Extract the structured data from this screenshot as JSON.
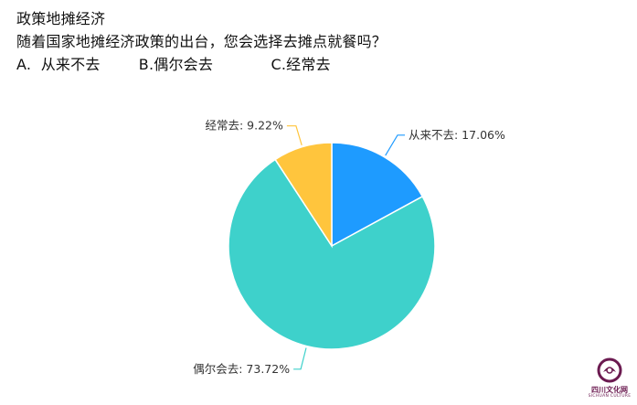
{
  "survey": {
    "title": "政策地摊经济",
    "question": "随着国家地摊经济政策的出台，您会选择去摊点就餐吗？",
    "options_line": "A.  从来不去        B.偶尔会去            C.经常去"
  },
  "chart_data": {
    "type": "pie",
    "title": "",
    "slices": [
      {
        "label": "从来不去",
        "value": 17.06,
        "color": "#1E9BFF",
        "display": "从来不去: 17.06%"
      },
      {
        "label": "偶尔会去",
        "value": 73.72,
        "color": "#3ED1CB",
        "display": "偶尔会去: 73.72%"
      },
      {
        "label": "经常去",
        "value": 9.22,
        "color": "#FFC53D",
        "display": "经常去: 9.22%"
      }
    ]
  },
  "logo": {
    "name": "四川文化网",
    "subtitle": "SICHUAN CULTURE",
    "color": "#6B1A50"
  }
}
